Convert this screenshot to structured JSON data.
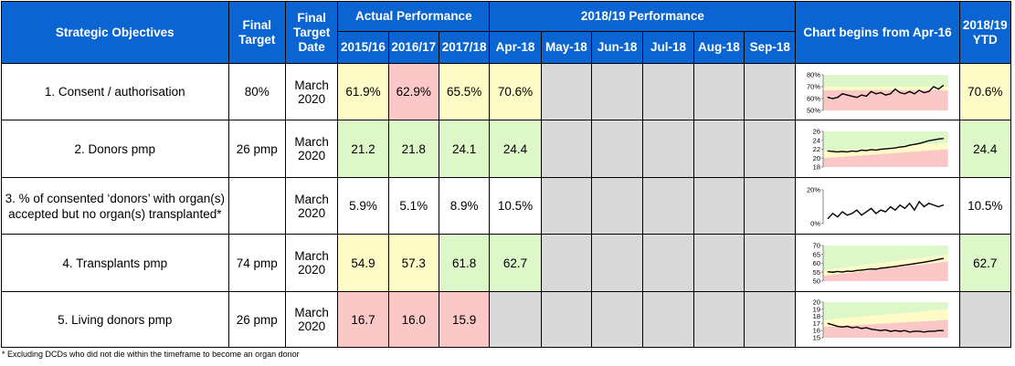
{
  "header": {
    "objectives": "Strategic Objectives",
    "final_target": "Final Target",
    "final_target_date": "Final Target Date",
    "actual_performance": "Actual Performance",
    "current_performance": "2018/19 Performance",
    "chart_begins": "Chart begins from Apr-16",
    "ytd": "2018/19 YTD",
    "years": [
      "2015/16",
      "2016/17",
      "2017/18"
    ],
    "months": [
      "Apr-18",
      "May-18",
      "Jun-18",
      "Jul-18",
      "Aug-18",
      "Sep-18"
    ]
  },
  "colors": {
    "header_blue": "#0a64d2",
    "green": "#ddf7c9",
    "yellow": "#fefbc6",
    "red": "#fbc7c7",
    "grey": "#d9d9d9"
  },
  "rows": [
    {
      "objective": "1. Consent / authorisation",
      "target": "80%",
      "date": "March 2020",
      "years": [
        {
          "value": "61.9%",
          "status": "yellow"
        },
        {
          "value": "62.9%",
          "status": "red"
        },
        {
          "value": "65.5%",
          "status": "yellow"
        }
      ],
      "months": [
        {
          "value": "70.6%",
          "status": "yellow"
        },
        {
          "value": "",
          "status": "grey"
        },
        {
          "value": "",
          "status": "grey"
        },
        {
          "value": "",
          "status": "grey"
        },
        {
          "value": "",
          "status": "grey"
        },
        {
          "value": "",
          "status": "grey"
        }
      ],
      "ytd": {
        "value": "70.6%",
        "status": "yellow"
      }
    },
    {
      "objective": "2. Donors pmp",
      "target": "26 pmp",
      "date": "March 2020",
      "years": [
        {
          "value": "21.2",
          "status": "green"
        },
        {
          "value": "21.8",
          "status": "green"
        },
        {
          "value": "24.1",
          "status": "green"
        }
      ],
      "months": [
        {
          "value": "24.4",
          "status": "green"
        },
        {
          "value": "",
          "status": "grey"
        },
        {
          "value": "",
          "status": "grey"
        },
        {
          "value": "",
          "status": "grey"
        },
        {
          "value": "",
          "status": "grey"
        },
        {
          "value": "",
          "status": "grey"
        }
      ],
      "ytd": {
        "value": "24.4",
        "status": "green"
      }
    },
    {
      "objective": "3. % of consented ‘donors’ with organ(s) accepted but no organ(s) transplanted*",
      "target": "",
      "date": "March 2020",
      "years": [
        {
          "value": "5.9%",
          "status": "white"
        },
        {
          "value": "5.1%",
          "status": "white"
        },
        {
          "value": "8.9%",
          "status": "white"
        }
      ],
      "months": [
        {
          "value": "10.5%",
          "status": "white"
        },
        {
          "value": "",
          "status": "grey"
        },
        {
          "value": "",
          "status": "grey"
        },
        {
          "value": "",
          "status": "grey"
        },
        {
          "value": "",
          "status": "grey"
        },
        {
          "value": "",
          "status": "grey"
        }
      ],
      "ytd": {
        "value": "10.5%",
        "status": "white"
      }
    },
    {
      "objective": "4. Transplants pmp",
      "target": "74 pmp",
      "date": "March 2020",
      "years": [
        {
          "value": "54.9",
          "status": "yellow"
        },
        {
          "value": "57.3",
          "status": "yellow"
        },
        {
          "value": "61.8",
          "status": "green"
        }
      ],
      "months": [
        {
          "value": "62.7",
          "status": "green"
        },
        {
          "value": "",
          "status": "grey"
        },
        {
          "value": "",
          "status": "grey"
        },
        {
          "value": "",
          "status": "grey"
        },
        {
          "value": "",
          "status": "grey"
        },
        {
          "value": "",
          "status": "grey"
        }
      ],
      "ytd": {
        "value": "62.7",
        "status": "green"
      }
    },
    {
      "objective": "5. Living donors pmp",
      "target": "26 pmp",
      "date": "March 2020",
      "years": [
        {
          "value": "16.7",
          "status": "red"
        },
        {
          "value": "16.0",
          "status": "red"
        },
        {
          "value": "15.9",
          "status": "red"
        }
      ],
      "months": [
        {
          "value": "",
          "status": "grey"
        },
        {
          "value": "",
          "status": "grey"
        },
        {
          "value": "",
          "status": "grey"
        },
        {
          "value": "",
          "status": "grey"
        },
        {
          "value": "",
          "status": "grey"
        },
        {
          "value": "",
          "status": "grey"
        }
      ],
      "ytd": {
        "value": "",
        "status": "grey"
      }
    }
  ],
  "chart_data": [
    {
      "type": "line",
      "yticks": [
        "80%",
        "70%",
        "60%",
        "50%"
      ],
      "ylim": [
        50,
        80
      ],
      "x": [
        "Apr-16",
        "May-16",
        "Jun-16",
        "Jul-16",
        "Aug-16",
        "Sep-16",
        "Oct-16",
        "Nov-16",
        "Dec-16",
        "Jan-17",
        "Feb-17",
        "Mar-17",
        "Apr-17",
        "May-17",
        "Jun-17",
        "Jul-17",
        "Aug-17",
        "Sep-17",
        "Oct-17",
        "Nov-17",
        "Dec-17",
        "Jan-18",
        "Feb-18",
        "Mar-18",
        "Apr-18"
      ],
      "series": [
        {
          "values": [
            61,
            60,
            61,
            64,
            63,
            62,
            61,
            63,
            62,
            66,
            64,
            65,
            63,
            64,
            68,
            65,
            64,
            66,
            64,
            67,
            65,
            66,
            70,
            68,
            71
          ]
        }
      ],
      "bands": {
        "x_end": 26,
        "green": [
          [
            70,
            80
          ],
          [
            70,
            80
          ]
        ],
        "yellow": [
          [
            67,
            70
          ],
          [
            67,
            70
          ]
        ],
        "red": [
          [
            50,
            67
          ],
          [
            50,
            67
          ]
        ]
      }
    },
    {
      "type": "line",
      "yticks": [
        "26",
        "24",
        "22",
        "20",
        "18"
      ],
      "ylim": [
        18,
        26
      ],
      "x": [
        "Apr-16",
        "May-16",
        "Jun-16",
        "Jul-16",
        "Aug-16",
        "Sep-16",
        "Oct-16",
        "Nov-16",
        "Dec-16",
        "Jan-17",
        "Feb-17",
        "Mar-17",
        "Apr-17",
        "May-17",
        "Jun-17",
        "Jul-17",
        "Aug-17",
        "Sep-17",
        "Oct-17",
        "Nov-17",
        "Dec-17",
        "Jan-18",
        "Feb-18",
        "Mar-18",
        "Apr-18"
      ],
      "series": [
        {
          "values": [
            21.6,
            21.5,
            21.4,
            21.5,
            21.4,
            21.6,
            21.5,
            21.8,
            21.7,
            21.9,
            21.8,
            22.0,
            22.1,
            22.2,
            22.3,
            22.5,
            22.6,
            22.9,
            23.1,
            23.3,
            23.6,
            23.9,
            24.1,
            24.3,
            24.4
          ]
        }
      ],
      "bands": {
        "x_end": 26,
        "green": [
          [
            21.5,
            26
          ],
          [
            23.5,
            26
          ]
        ],
        "yellow": [
          [
            20,
            21.5
          ],
          [
            22,
            23.5
          ]
        ],
        "red": [
          [
            18,
            20
          ],
          [
            18,
            22
          ]
        ]
      }
    },
    {
      "type": "line",
      "yticks": [
        "20%",
        "0%"
      ],
      "ylim": [
        0,
        20
      ],
      "x": [
        "Apr-16",
        "May-16",
        "Jun-16",
        "Jul-16",
        "Aug-16",
        "Sep-16",
        "Oct-16",
        "Nov-16",
        "Dec-16",
        "Jan-17",
        "Feb-17",
        "Mar-17",
        "Apr-17",
        "May-17",
        "Jun-17",
        "Jul-17",
        "Aug-17",
        "Sep-17",
        "Oct-17",
        "Nov-17",
        "Dec-17",
        "Jan-18",
        "Feb-18",
        "Mar-18",
        "Apr-18"
      ],
      "series": [
        {
          "values": [
            3,
            6,
            4,
            7,
            5,
            6,
            8,
            5,
            7,
            9,
            6,
            8,
            7,
            10,
            8,
            11,
            9,
            12,
            8,
            13,
            10,
            12,
            11,
            10,
            11
          ]
        }
      ]
    },
    {
      "type": "line",
      "yticks": [
        "70",
        "65",
        "60",
        "55",
        "50"
      ],
      "ylim": [
        50,
        70
      ],
      "x": [
        "Apr-16",
        "May-16",
        "Jun-16",
        "Jul-16",
        "Aug-16",
        "Sep-16",
        "Oct-16",
        "Nov-16",
        "Dec-16",
        "Jan-17",
        "Feb-17",
        "Mar-17",
        "Apr-17",
        "May-17",
        "Jun-17",
        "Jul-17",
        "Aug-17",
        "Sep-17",
        "Oct-17",
        "Nov-17",
        "Dec-17",
        "Jan-18",
        "Feb-18",
        "Mar-18",
        "Apr-18"
      ],
      "series": [
        {
          "values": [
            55.2,
            55.0,
            55.4,
            55.1,
            55.6,
            55.5,
            56.0,
            56.2,
            56.5,
            56.8,
            56.7,
            57.3,
            57.5,
            57.9,
            58.2,
            58.6,
            59.0,
            59.4,
            59.8,
            60.2,
            60.6,
            61.1,
            61.6,
            62.2,
            62.7
          ]
        }
      ],
      "bands": {
        "x_end": 26,
        "green": [
          [
            56,
            70
          ],
          [
            65,
            70
          ]
        ],
        "yellow": [
          [
            53,
            56
          ],
          [
            61,
            65
          ]
        ],
        "red": [
          [
            50,
            53
          ],
          [
            50,
            61
          ]
        ]
      }
    },
    {
      "type": "line",
      "yticks": [
        "20",
        "19",
        "18",
        "17",
        "16",
        "15"
      ],
      "ylim": [
        15,
        20
      ],
      "x": [
        "Apr-16",
        "May-16",
        "Jun-16",
        "Jul-16",
        "Aug-16",
        "Sep-16",
        "Oct-16",
        "Nov-16",
        "Dec-16",
        "Jan-17",
        "Feb-17",
        "Mar-17",
        "Apr-17",
        "May-17",
        "Jun-17",
        "Jul-17",
        "Aug-17",
        "Sep-17",
        "Oct-17",
        "Nov-17",
        "Dec-17",
        "Jan-18",
        "Feb-18",
        "Mar-18",
        "Apr-18"
      ],
      "series": [
        {
          "values": [
            17.0,
            16.8,
            16.6,
            16.5,
            16.6,
            16.4,
            16.5,
            16.3,
            16.4,
            16.2,
            16.1,
            16.0,
            16.1,
            15.9,
            16.0,
            15.9,
            16.0,
            15.8,
            15.9,
            15.9,
            15.8,
            15.9,
            15.9,
            16.0,
            16.0
          ]
        }
      ],
      "bands": {
        "x_end": 26,
        "green": [
          [
            17.5,
            20
          ],
          [
            19,
            20
          ]
        ],
        "yellow": [
          [
            16.5,
            17.5
          ],
          [
            17.5,
            19
          ]
        ],
        "red": [
          [
            15,
            16.5
          ],
          [
            15,
            17.5
          ]
        ]
      }
    }
  ],
  "footnote": "* Excluding DCDs who did not die within the timeframe to become an organ donor"
}
